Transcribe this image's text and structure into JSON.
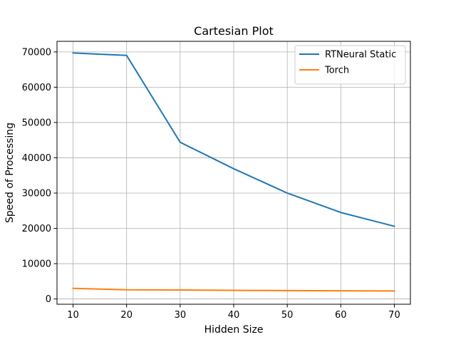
{
  "chart_data": {
    "type": "line",
    "title": "Cartesian Plot",
    "xlabel": "Hidden Size",
    "ylabel": "Speed of Processing",
    "x": [
      10,
      20,
      30,
      40,
      50,
      60,
      70
    ],
    "xlim": [
      7,
      73
    ],
    "ylim": [
      -1500,
      73000
    ],
    "xticks": [
      10,
      20,
      30,
      40,
      50,
      60,
      70
    ],
    "yticks": [
      0,
      10000,
      20000,
      30000,
      40000,
      50000,
      60000,
      70000
    ],
    "grid": true,
    "legend_position": "top-right",
    "series": [
      {
        "name": "RTNeural Static",
        "color": "#1f77b4",
        "values": [
          69700,
          69000,
          44400,
          36900,
          30000,
          24500,
          20600
        ]
      },
      {
        "name": "Torch",
        "color": "#ff7f0e",
        "values": [
          3000,
          2600,
          2550,
          2450,
          2350,
          2300,
          2250
        ]
      }
    ]
  }
}
